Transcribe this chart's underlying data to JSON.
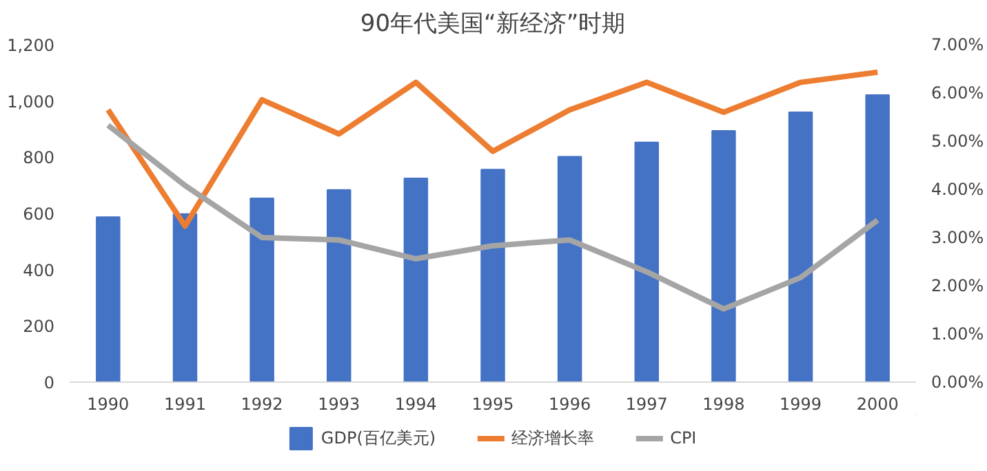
{
  "chart_data": {
    "type": "bar",
    "title": "90年代美国“新经济”时期",
    "categories": [
      "1990",
      "1991",
      "1992",
      "1993",
      "1994",
      "1995",
      "1996",
      "1997",
      "1998",
      "1999",
      "2000"
    ],
    "series": [
      {
        "name": "GDP(百亿美元)",
        "color": "#4472c4",
        "values": [
          587,
          598,
          654,
          684,
          725,
          756,
          802,
          853,
          894,
          960,
          1021
        ]
      },
      {
        "name": "经济增长率",
        "type": "line",
        "axis": "y2",
        "color": "#ed7d31",
        "values": [
          5.65,
          3.24,
          5.86,
          5.15,
          6.22,
          4.79,
          5.65,
          6.22,
          5.6,
          6.22,
          6.43
        ]
      },
      {
        "name": "CPI",
        "type": "line",
        "axis": "y2",
        "color": "#a5a5a5",
        "values": [
          5.33,
          4.08,
          3.0,
          2.95,
          2.56,
          2.83,
          2.95,
          2.29,
          1.52,
          2.17,
          3.36
        ]
      }
    ],
    "ylim": [
      0,
      1200
    ],
    "yticks": [
      0,
      {
        "value": 200,
        "label": "200"
      },
      {
        "value": 400,
        "label": "400"
      },
      {
        "value": 600,
        "label": "600"
      },
      {
        "value": 800,
        "label": "800"
      },
      {
        "value": 1000,
        "label": "1,000"
      },
      {
        "value": 1200,
        "label": "1,200"
      }
    ],
    "y2lim": [
      0,
      7
    ],
    "y2ticks": [
      {
        "value": 0,
        "label": "0.00%"
      },
      {
        "value": 1,
        "label": "1.00%"
      },
      {
        "value": 2,
        "label": "2.00%"
      },
      {
        "value": 3,
        "label": "3.00%"
      },
      {
        "value": 4,
        "label": "4.00%"
      },
      {
        "value": 5,
        "label": "5.00%"
      },
      {
        "value": 6,
        "label": "6.00%"
      },
      {
        "value": 7,
        "label": "7.00%"
      }
    ],
    "grid": false,
    "legend": "bottom",
    "marker": "none",
    "line_style": "solid"
  }
}
